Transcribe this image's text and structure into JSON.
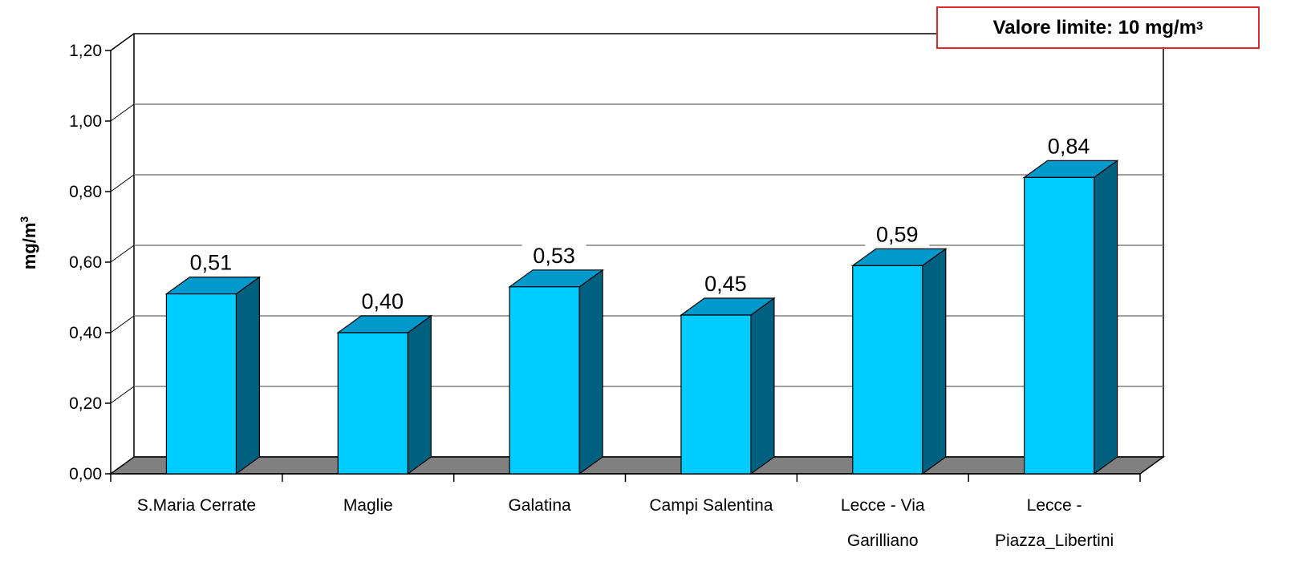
{
  "chart_data": {
    "type": "bar",
    "title": "",
    "ylabel": "mg/m",
    "ylabel_superscript": "3",
    "xlabel": "",
    "categories": [
      [
        "S.Maria Cerrate"
      ],
      [
        "Maglie"
      ],
      [
        "Galatina"
      ],
      [
        "Campi Salentina"
      ],
      [
        "Lecce - Via",
        "Garilliano"
      ],
      [
        "Lecce -",
        "Piazza_Libertini"
      ]
    ],
    "values": [
      0.51,
      0.4,
      0.53,
      0.45,
      0.59,
      0.84
    ],
    "value_labels": [
      "0,51",
      "0,40",
      "0,53",
      "0,45",
      "0,59",
      "0,84"
    ],
    "ylim": [
      0,
      1.2
    ],
    "yticks": [
      0,
      0.2,
      0.4,
      0.6,
      0.8,
      1.0,
      1.2
    ],
    "ytick_labels": [
      "0,00",
      "0,20",
      "0,40",
      "0,60",
      "0,80",
      "1,00",
      "1,20"
    ],
    "grid": true,
    "three_d": true,
    "colors": {
      "bar_front": "#00ccff",
      "bar_top": "#0099cc",
      "bar_side": "#006080",
      "floor": "#808080",
      "grid": "#808080",
      "limit_border": "#e0262b"
    }
  },
  "annotation": {
    "text": "Valore limite: 10 mg/m",
    "superscript": "3"
  }
}
